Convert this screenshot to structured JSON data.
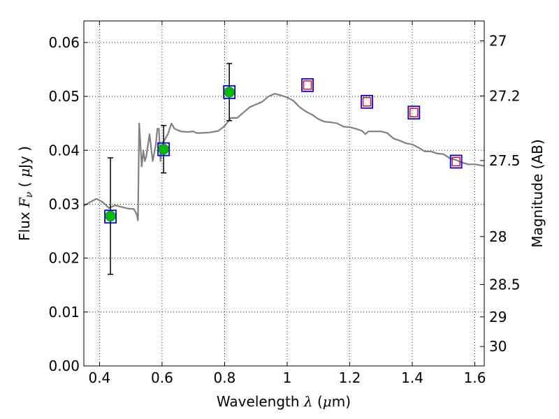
{
  "chart_data": {
    "type": "scatter",
    "xlabel": "Wavelength  λ (μm)",
    "ylabel": "Flux  F_ν  ( μJy )",
    "y2label": "Magnitude (AB)",
    "xlim": [
      0.35,
      1.63
    ],
    "ylim": [
      0.0,
      0.064
    ],
    "grid": true,
    "xticks": [
      0.4,
      0.6,
      0.8,
      1.0,
      1.2,
      1.4,
      1.6
    ],
    "xtick_labels": [
      "0.4",
      "0.6",
      "0.8",
      "1",
      "1.2",
      "1.4",
      "1.6"
    ],
    "yticks": [
      0.0,
      0.01,
      0.02,
      0.03,
      0.04,
      0.05,
      0.06
    ],
    "ytick_labels": [
      "0.00",
      "0.01",
      "0.02",
      "0.03",
      "0.04",
      "0.05",
      "0.06"
    ],
    "y2ticks": [
      {
        "label": "27",
        "flux": 0.0603
      },
      {
        "label": "27.2",
        "flux": 0.0501
      },
      {
        "label": "27.5",
        "flux": 0.0381
      },
      {
        "label": "28",
        "flux": 0.024
      },
      {
        "label": "28.5",
        "flux": 0.0151
      },
      {
        "label": "29",
        "flux": 0.0091
      },
      {
        "label": "30",
        "flux": 0.0036
      }
    ],
    "series": [
      {
        "kind": "model_spectrum",
        "color": "#808080",
        "x": [
          0.35,
          0.37,
          0.39,
          0.41,
          0.43,
          0.45,
          0.47,
          0.49,
          0.51,
          0.52,
          0.523,
          0.527,
          0.53,
          0.535,
          0.54,
          0.545,
          0.55,
          0.56,
          0.57,
          0.58,
          0.585,
          0.59,
          0.595,
          0.6,
          0.62,
          0.63,
          0.64,
          0.66,
          0.68,
          0.7,
          0.71,
          0.72,
          0.75,
          0.78,
          0.8,
          0.82,
          0.84,
          0.86,
          0.88,
          0.9,
          0.92,
          0.94,
          0.96,
          0.98,
          1.0,
          1.02,
          1.04,
          1.06,
          1.08,
          1.1,
          1.12,
          1.14,
          1.16,
          1.18,
          1.2,
          1.22,
          1.24,
          1.25,
          1.26,
          1.28,
          1.3,
          1.32,
          1.34,
          1.36,
          1.38,
          1.4,
          1.42,
          1.44,
          1.46,
          1.48,
          1.5,
          1.52,
          1.54,
          1.56,
          1.58,
          1.6,
          1.63
        ],
        "y": [
          0.0297,
          0.0304,
          0.031,
          0.0304,
          0.0293,
          0.0298,
          0.0295,
          0.0292,
          0.0291,
          0.028,
          0.027,
          0.045,
          0.042,
          0.037,
          0.04,
          0.038,
          0.039,
          0.043,
          0.038,
          0.041,
          0.044,
          0.044,
          0.038,
          0.041,
          0.0432,
          0.045,
          0.044,
          0.0435,
          0.0434,
          0.0435,
          0.0432,
          0.0432,
          0.0433,
          0.0436,
          0.0445,
          0.046,
          0.046,
          0.047,
          0.048,
          0.0485,
          0.049,
          0.05,
          0.0505,
          0.0502,
          0.0498,
          0.0492,
          0.048,
          0.0472,
          0.0466,
          0.0458,
          0.0453,
          0.0452,
          0.045,
          0.0444,
          0.0443,
          0.044,
          0.0436,
          0.043,
          0.0435,
          0.0435,
          0.0435,
          0.0432,
          0.0422,
          0.0418,
          0.0413,
          0.0411,
          0.0405,
          0.0398,
          0.0398,
          0.0394,
          0.0393,
          0.0385,
          0.0382,
          0.0377,
          0.0374,
          0.0374,
          0.0371
        ]
      },
      {
        "kind": "observed_detections",
        "marker": "filled-circle",
        "color": "#00bb00",
        "x": [
          0.435,
          0.605,
          0.815
        ],
        "y": [
          0.0278,
          0.0402,
          0.0508
        ],
        "yerr_low": [
          0.0108,
          0.0044,
          0.0053
        ],
        "yerr_high": [
          0.0108,
          0.0044,
          0.0053
        ]
      },
      {
        "kind": "model_photometry",
        "marker": "open-square",
        "color": "#0000ee",
        "x": [
          0.435,
          0.605,
          0.815,
          1.065,
          1.255,
          1.405,
          1.54
        ],
        "y": [
          0.0277,
          0.0402,
          0.0508,
          0.0521,
          0.049,
          0.047,
          0.0379
        ]
      },
      {
        "kind": "upper_limits",
        "marker": "small-open-square",
        "color": "#ee0000",
        "x": [
          1.065,
          1.255,
          1.405,
          1.54
        ],
        "y": [
          0.0521,
          0.049,
          0.047,
          0.0379
        ]
      }
    ]
  }
}
